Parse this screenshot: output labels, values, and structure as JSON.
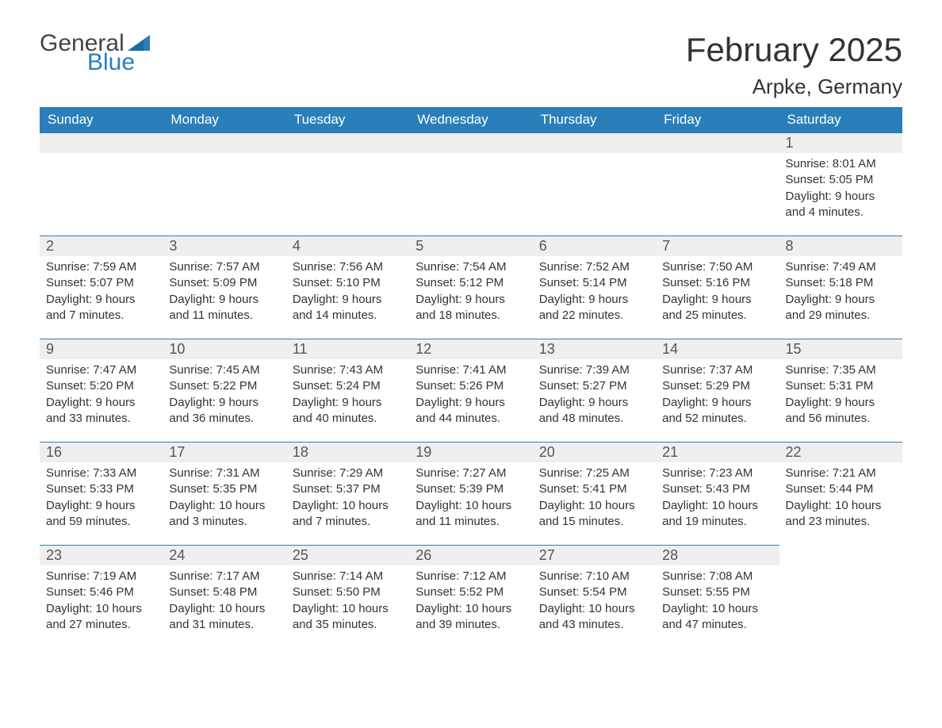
{
  "logo": {
    "text_general": "General",
    "text_blue": "Blue",
    "icon_color": "#2a7fba"
  },
  "title": "February 2025",
  "location": "Arpke, Germany",
  "colors": {
    "header_bg": "#2a7fba",
    "header_text": "#ffffff",
    "daynum_bg": "#efefef",
    "border_top": "#2a7fba",
    "body_text": "#333333",
    "page_bg": "#ffffff"
  },
  "fonts": {
    "title_size_pt": 42,
    "location_size_pt": 26,
    "header_size_pt": 17,
    "daynum_size_pt": 18,
    "body_size_pt": 15
  },
  "day_headers": [
    "Sunday",
    "Monday",
    "Tuesday",
    "Wednesday",
    "Thursday",
    "Friday",
    "Saturday"
  ],
  "weeks": [
    [
      null,
      null,
      null,
      null,
      null,
      null,
      {
        "n": "1",
        "sunrise": "Sunrise: 8:01 AM",
        "sunset": "Sunset: 5:05 PM",
        "daylight": "Daylight: 9 hours and 4 minutes."
      }
    ],
    [
      {
        "n": "2",
        "sunrise": "Sunrise: 7:59 AM",
        "sunset": "Sunset: 5:07 PM",
        "daylight": "Daylight: 9 hours and 7 minutes."
      },
      {
        "n": "3",
        "sunrise": "Sunrise: 7:57 AM",
        "sunset": "Sunset: 5:09 PM",
        "daylight": "Daylight: 9 hours and 11 minutes."
      },
      {
        "n": "4",
        "sunrise": "Sunrise: 7:56 AM",
        "sunset": "Sunset: 5:10 PM",
        "daylight": "Daylight: 9 hours and 14 minutes."
      },
      {
        "n": "5",
        "sunrise": "Sunrise: 7:54 AM",
        "sunset": "Sunset: 5:12 PM",
        "daylight": "Daylight: 9 hours and 18 minutes."
      },
      {
        "n": "6",
        "sunrise": "Sunrise: 7:52 AM",
        "sunset": "Sunset: 5:14 PM",
        "daylight": "Daylight: 9 hours and 22 minutes."
      },
      {
        "n": "7",
        "sunrise": "Sunrise: 7:50 AM",
        "sunset": "Sunset: 5:16 PM",
        "daylight": "Daylight: 9 hours and 25 minutes."
      },
      {
        "n": "8",
        "sunrise": "Sunrise: 7:49 AM",
        "sunset": "Sunset: 5:18 PM",
        "daylight": "Daylight: 9 hours and 29 minutes."
      }
    ],
    [
      {
        "n": "9",
        "sunrise": "Sunrise: 7:47 AM",
        "sunset": "Sunset: 5:20 PM",
        "daylight": "Daylight: 9 hours and 33 minutes."
      },
      {
        "n": "10",
        "sunrise": "Sunrise: 7:45 AM",
        "sunset": "Sunset: 5:22 PM",
        "daylight": "Daylight: 9 hours and 36 minutes."
      },
      {
        "n": "11",
        "sunrise": "Sunrise: 7:43 AM",
        "sunset": "Sunset: 5:24 PM",
        "daylight": "Daylight: 9 hours and 40 minutes."
      },
      {
        "n": "12",
        "sunrise": "Sunrise: 7:41 AM",
        "sunset": "Sunset: 5:26 PM",
        "daylight": "Daylight: 9 hours and 44 minutes."
      },
      {
        "n": "13",
        "sunrise": "Sunrise: 7:39 AM",
        "sunset": "Sunset: 5:27 PM",
        "daylight": "Daylight: 9 hours and 48 minutes."
      },
      {
        "n": "14",
        "sunrise": "Sunrise: 7:37 AM",
        "sunset": "Sunset: 5:29 PM",
        "daylight": "Daylight: 9 hours and 52 minutes."
      },
      {
        "n": "15",
        "sunrise": "Sunrise: 7:35 AM",
        "sunset": "Sunset: 5:31 PM",
        "daylight": "Daylight: 9 hours and 56 minutes."
      }
    ],
    [
      {
        "n": "16",
        "sunrise": "Sunrise: 7:33 AM",
        "sunset": "Sunset: 5:33 PM",
        "daylight": "Daylight: 9 hours and 59 minutes."
      },
      {
        "n": "17",
        "sunrise": "Sunrise: 7:31 AM",
        "sunset": "Sunset: 5:35 PM",
        "daylight": "Daylight: 10 hours and 3 minutes."
      },
      {
        "n": "18",
        "sunrise": "Sunrise: 7:29 AM",
        "sunset": "Sunset: 5:37 PM",
        "daylight": "Daylight: 10 hours and 7 minutes."
      },
      {
        "n": "19",
        "sunrise": "Sunrise: 7:27 AM",
        "sunset": "Sunset: 5:39 PM",
        "daylight": "Daylight: 10 hours and 11 minutes."
      },
      {
        "n": "20",
        "sunrise": "Sunrise: 7:25 AM",
        "sunset": "Sunset: 5:41 PM",
        "daylight": "Daylight: 10 hours and 15 minutes."
      },
      {
        "n": "21",
        "sunrise": "Sunrise: 7:23 AM",
        "sunset": "Sunset: 5:43 PM",
        "daylight": "Daylight: 10 hours and 19 minutes."
      },
      {
        "n": "22",
        "sunrise": "Sunrise: 7:21 AM",
        "sunset": "Sunset: 5:44 PM",
        "daylight": "Daylight: 10 hours and 23 minutes."
      }
    ],
    [
      {
        "n": "23",
        "sunrise": "Sunrise: 7:19 AM",
        "sunset": "Sunset: 5:46 PM",
        "daylight": "Daylight: 10 hours and 27 minutes."
      },
      {
        "n": "24",
        "sunrise": "Sunrise: 7:17 AM",
        "sunset": "Sunset: 5:48 PM",
        "daylight": "Daylight: 10 hours and 31 minutes."
      },
      {
        "n": "25",
        "sunrise": "Sunrise: 7:14 AM",
        "sunset": "Sunset: 5:50 PM",
        "daylight": "Daylight: 10 hours and 35 minutes."
      },
      {
        "n": "26",
        "sunrise": "Sunrise: 7:12 AM",
        "sunset": "Sunset: 5:52 PM",
        "daylight": "Daylight: 10 hours and 39 minutes."
      },
      {
        "n": "27",
        "sunrise": "Sunrise: 7:10 AM",
        "sunset": "Sunset: 5:54 PM",
        "daylight": "Daylight: 10 hours and 43 minutes."
      },
      {
        "n": "28",
        "sunrise": "Sunrise: 7:08 AM",
        "sunset": "Sunset: 5:55 PM",
        "daylight": "Daylight: 10 hours and 47 minutes."
      },
      null
    ]
  ]
}
